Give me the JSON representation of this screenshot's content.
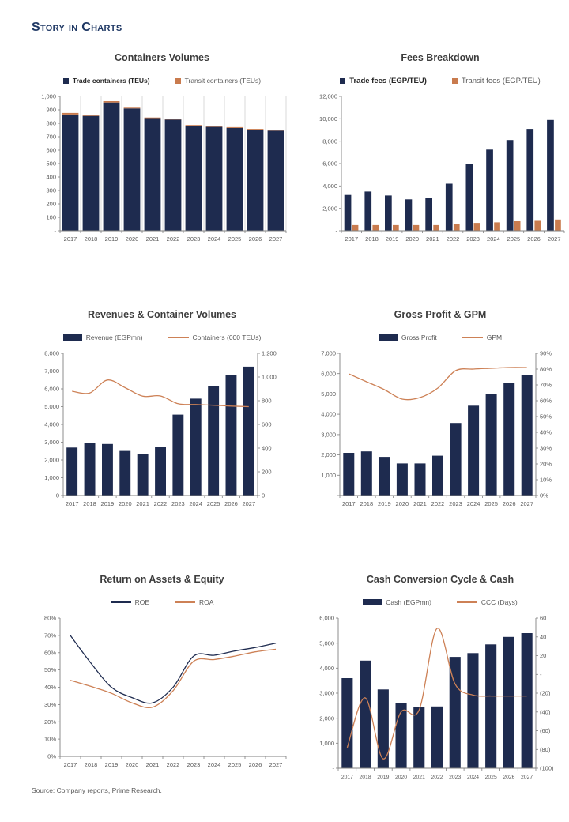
{
  "page": {
    "title": "Story in Charts",
    "source": "Source: Company reports, Prime Research."
  },
  "colors": {
    "navy": "#1e2b4f",
    "orange": "#c97b4e",
    "axis_line": "#808080",
    "grid_line": "#d9d9d9",
    "tick_text": "#595959",
    "title_text": "#3d3d3d",
    "page_title_text": "#1f3864"
  },
  "years": [
    "2017",
    "2018",
    "2019",
    "2020",
    "2021",
    "2022",
    "2023",
    "2024",
    "2025",
    "2026",
    "2027"
  ],
  "chart_data": [
    {
      "id": "containers-volumes",
      "type": "bar",
      "stacked": true,
      "vgrid": true,
      "title": "Containers Volumes",
      "categories": [
        "2017",
        "2018",
        "2019",
        "2020",
        "2021",
        "2022",
        "2023",
        "2024",
        "2025",
        "2026",
        "2027"
      ],
      "left_axis": {
        "min": 0,
        "max": 1000,
        "step": 100,
        "format": "dash"
      },
      "series": [
        {
          "label": "Trade containers (TEUs)",
          "kind": "bar",
          "marker": "sq",
          "legend_bold": true,
          "color": "#1e2b4f",
          "axis": "left",
          "values": [
            865,
            855,
            955,
            910,
            838,
            828,
            782,
            773,
            765,
            752,
            745
          ]
        },
        {
          "label": "Transit containers (TEUs)",
          "kind": "bar",
          "marker": "sq",
          "legend_bold": false,
          "color": "#c97b4e",
          "axis": "left",
          "values": [
            12,
            8,
            10,
            6,
            5,
            7,
            5,
            5,
            6,
            6,
            6
          ]
        }
      ]
    },
    {
      "id": "fees-breakdown",
      "type": "bar",
      "stacked": false,
      "vgrid": false,
      "title": "Fees Breakdown",
      "categories": [
        "2017",
        "2018",
        "2019",
        "2020",
        "2021",
        "2022",
        "2023",
        "2024",
        "2025",
        "2026",
        "2027"
      ],
      "left_axis": {
        "min": 0,
        "max": 12000,
        "step": 2000,
        "format": "dash"
      },
      "series": [
        {
          "label": "Trade fees (EGP/TEU)",
          "kind": "bar",
          "marker": "sq",
          "legend_bold": true,
          "color": "#1e2b4f",
          "axis": "left",
          "values": [
            3200,
            3500,
            3150,
            2800,
            2900,
            4200,
            5950,
            7250,
            8100,
            9100,
            9900
          ]
        },
        {
          "label": "Transit fees (EGP/TEU)",
          "kind": "bar",
          "marker": "sq",
          "legend_bold": false,
          "color": "#c97b4e",
          "axis": "left",
          "values": [
            500,
            500,
            500,
            500,
            500,
            600,
            700,
            750,
            850,
            950,
            1000
          ]
        }
      ]
    },
    {
      "id": "revenues-containers",
      "type": "bar+line",
      "stacked": false,
      "vgrid": false,
      "title": "Revenues & Container Volumes",
      "categories": [
        "2017",
        "2018",
        "2019",
        "2020",
        "2021",
        "2022",
        "2023",
        "2024",
        "2025",
        "2026",
        "2027"
      ],
      "left_axis": {
        "min": 0,
        "max": 8000,
        "step": 1000,
        "format": "comma"
      },
      "right_axis": {
        "min": 0,
        "max": 1200,
        "step": 200,
        "format": "comma"
      },
      "series": [
        {
          "label": "Revenue (EGPmn)",
          "kind": "bar",
          "marker": "bar",
          "legend_bold": false,
          "color": "#1e2b4f",
          "axis": "left",
          "values": [
            2700,
            2950,
            2900,
            2550,
            2350,
            2750,
            4550,
            5450,
            6150,
            6800,
            7250
          ]
        },
        {
          "label": "Containers (000 TEUs)",
          "kind": "line",
          "marker": "line",
          "legend_bold": false,
          "color": "#cd8156",
          "axis": "right",
          "values": [
            880,
            865,
            975,
            910,
            838,
            840,
            775,
            768,
            762,
            755,
            750
          ]
        }
      ]
    },
    {
      "id": "gross-profit-gpm",
      "type": "bar+line",
      "stacked": false,
      "vgrid": false,
      "title": "Gross Profit & GPM",
      "categories": [
        "2017",
        "2018",
        "2019",
        "2020",
        "2021",
        "2022",
        "2023",
        "2024",
        "2025",
        "2026",
        "2027"
      ],
      "left_axis": {
        "min": 0,
        "max": 7000,
        "step": 1000,
        "format": "dash"
      },
      "right_axis": {
        "min": 0,
        "max": 90,
        "step": 10,
        "format": "percent"
      },
      "series": [
        {
          "label": "Gross Profit",
          "kind": "bar",
          "marker": "bar",
          "legend_bold": false,
          "color": "#1e2b4f",
          "axis": "left",
          "values": [
            2100,
            2170,
            1900,
            1580,
            1580,
            1960,
            3570,
            4420,
            4980,
            5530,
            5910
          ]
        },
        {
          "label": "GPM",
          "kind": "line",
          "marker": "line",
          "legend_bold": false,
          "color": "#cd8156",
          "axis": "right",
          "values": [
            77,
            72,
            67,
            61,
            62,
            68,
            79,
            80,
            80.5,
            81,
            81
          ]
        }
      ]
    },
    {
      "id": "roe-roa",
      "type": "line",
      "stacked": false,
      "vgrid": false,
      "title": "Return on Assets & Equity",
      "categories": [
        "2017",
        "2018",
        "2019",
        "2020",
        "2021",
        "2022",
        "2023",
        "2024",
        "2025",
        "2026",
        "2027"
      ],
      "left_axis": {
        "min": 0,
        "max": 80,
        "step": 10,
        "format": "percent"
      },
      "series": [
        {
          "label": "ROE",
          "kind": "line",
          "marker": "line",
          "legend_bold": false,
          "color": "#1e2b4f",
          "axis": "left",
          "values": [
            70,
            54,
            40,
            34,
            31,
            40,
            58,
            58.5,
            61,
            63,
            65.5
          ]
        },
        {
          "label": "ROA",
          "kind": "line",
          "marker": "line",
          "legend_bold": false,
          "color": "#cd8156",
          "axis": "left",
          "values": [
            44,
            40.5,
            36.5,
            31,
            28.5,
            38,
            55,
            56,
            58,
            60.5,
            62
          ]
        }
      ]
    },
    {
      "id": "ccc-cash",
      "type": "bar+line",
      "stacked": false,
      "vgrid": false,
      "title": "Cash Conversion Cycle & Cash",
      "categories": [
        "2017",
        "2018",
        "2019",
        "2020",
        "2021",
        "2022",
        "2023",
        "2024",
        "2025",
        "2026",
        "2027"
      ],
      "left_axis": {
        "min": 0,
        "max": 6000,
        "step": 1000,
        "format": "dash"
      },
      "right_axis": {
        "min": -100,
        "max": 60,
        "step": 20,
        "format": "paren"
      },
      "series": [
        {
          "label": "Cash (EGPmn)",
          "kind": "bar",
          "marker": "bar",
          "legend_bold": false,
          "color": "#1e2b4f",
          "axis": "left",
          "values": [
            3600,
            4300,
            3150,
            2600,
            2430,
            2470,
            4450,
            4600,
            4950,
            5250,
            5400
          ]
        },
        {
          "label": "CCC (Days)",
          "kind": "line",
          "marker": "line",
          "legend_bold": false,
          "color": "#cd8156",
          "axis": "right",
          "values": [
            -78,
            -25,
            -90,
            -40,
            -38,
            49,
            -10,
            -22,
            -23,
            -23,
            -23
          ]
        }
      ]
    }
  ]
}
